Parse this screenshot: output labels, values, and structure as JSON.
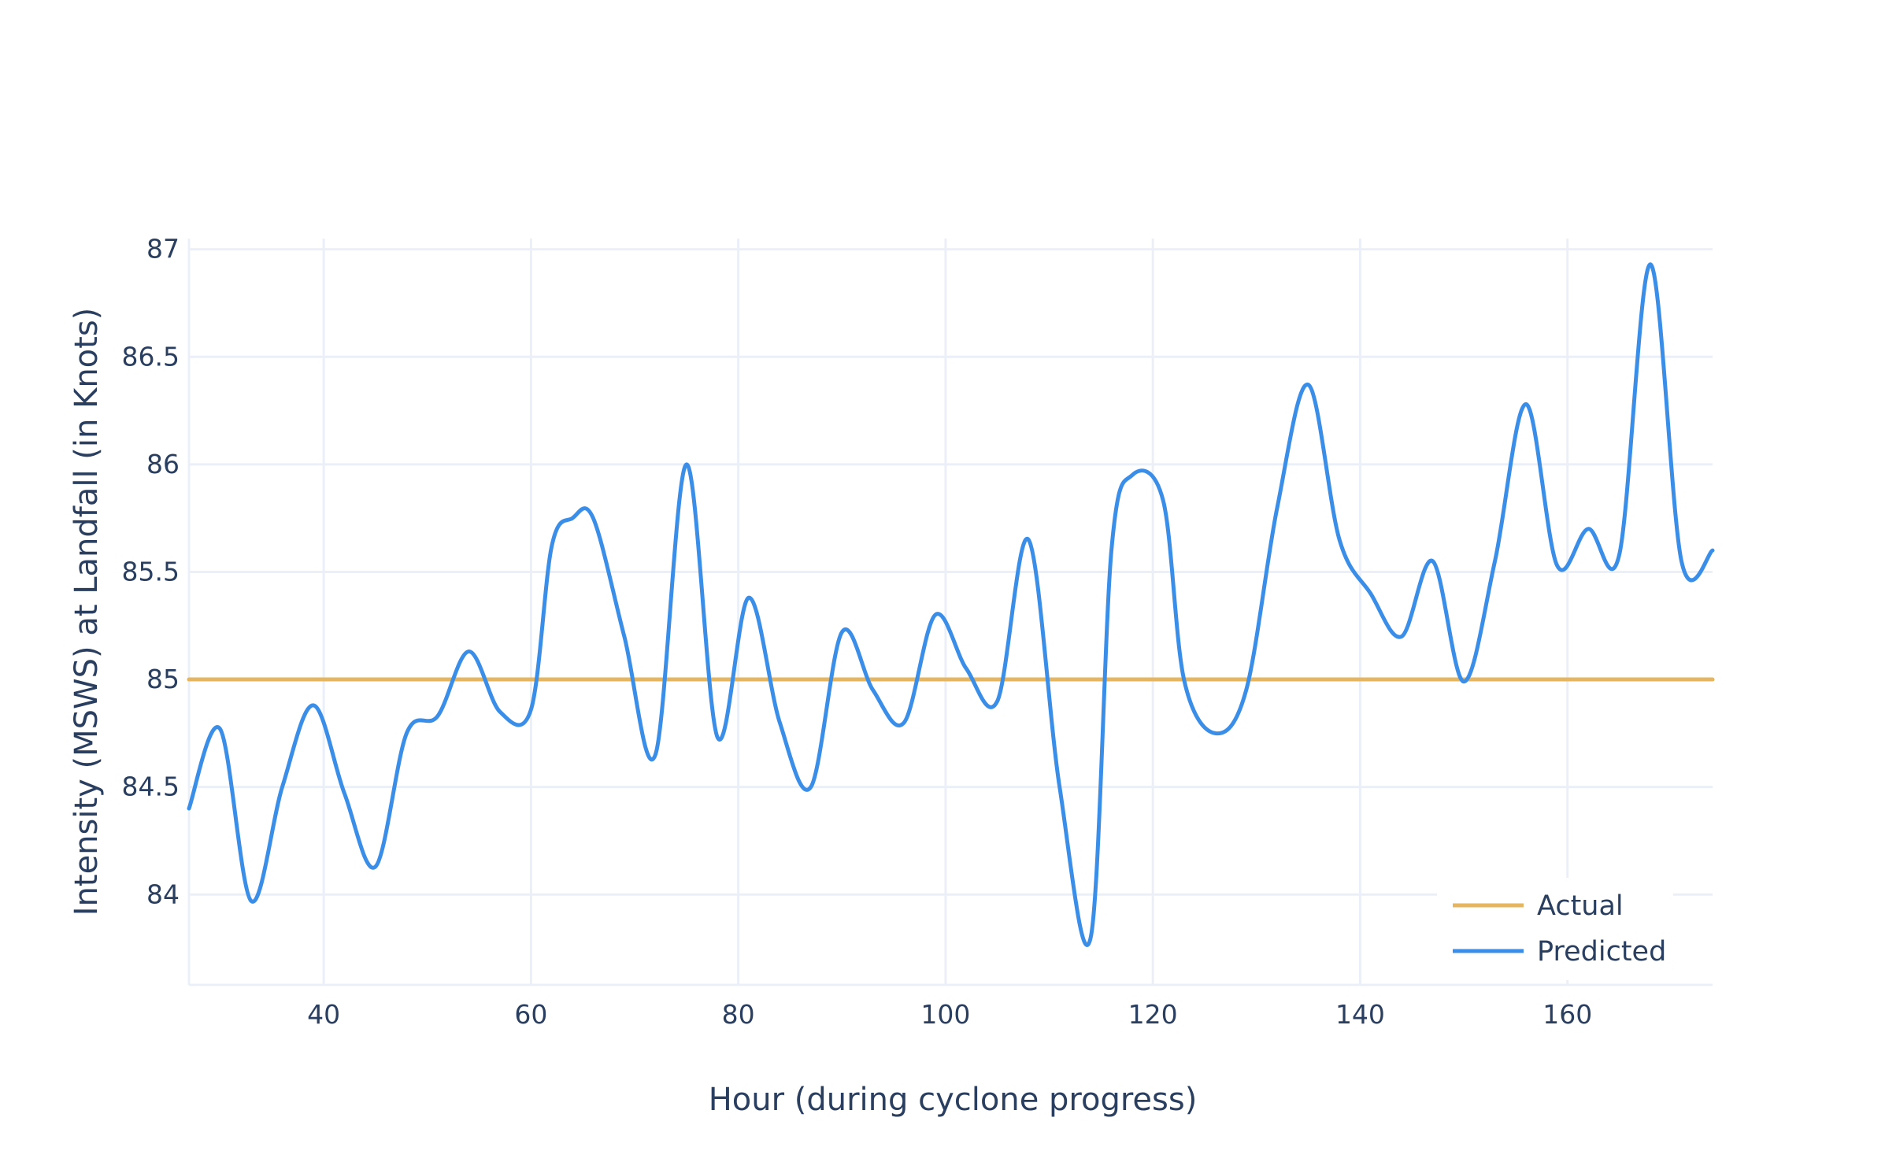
{
  "chart_data": {
    "type": "line",
    "title": "",
    "xlabel": "Hour (during cyclone progress)",
    "ylabel": "Intensity (MSWS) at Landfall (in Knots)",
    "xlim": [
      27,
      174
    ],
    "ylim": [
      83.58,
      87.05
    ],
    "xticks": [
      40,
      60,
      80,
      100,
      120,
      140,
      160
    ],
    "yticks": [
      84,
      84.5,
      85,
      85.5,
      86,
      86.5,
      87
    ],
    "grid": true,
    "legend_position": "bottom-right",
    "series": [
      {
        "name": "Actual",
        "color": "#e5b560",
        "x": [
          27,
          174
        ],
        "y": [
          85,
          85
        ]
      },
      {
        "name": "Predicted",
        "color": "#3b8ee8",
        "x": [
          27,
          30,
          33,
          36,
          39,
          42,
          45,
          48,
          51,
          54,
          57,
          60,
          62,
          64,
          66,
          69,
          72,
          75,
          78,
          81,
          84,
          87,
          90,
          93,
          96,
          99,
          102,
          105,
          108,
          111,
          114,
          116,
          118,
          121,
          123,
          126,
          129,
          132,
          135,
          138,
          141,
          144,
          147,
          150,
          153,
          156,
          159,
          162,
          165,
          168,
          171,
          174
        ],
        "y": [
          84.4,
          84.77,
          83.97,
          84.5,
          84.88,
          84.47,
          84.13,
          84.75,
          84.83,
          85.13,
          84.85,
          84.86,
          85.62,
          85.75,
          85.75,
          85.2,
          84.65,
          86.0,
          84.73,
          85.38,
          84.8,
          84.5,
          85.22,
          84.95,
          84.8,
          85.3,
          85.05,
          84.9,
          85.65,
          84.5,
          83.8,
          85.6,
          85.95,
          85.83,
          85.0,
          84.75,
          84.95,
          85.8,
          86.37,
          85.65,
          85.4,
          85.2,
          85.55,
          84.99,
          85.55,
          86.28,
          85.53,
          85.7,
          85.58,
          86.93,
          85.55,
          85.6
        ]
      }
    ]
  }
}
